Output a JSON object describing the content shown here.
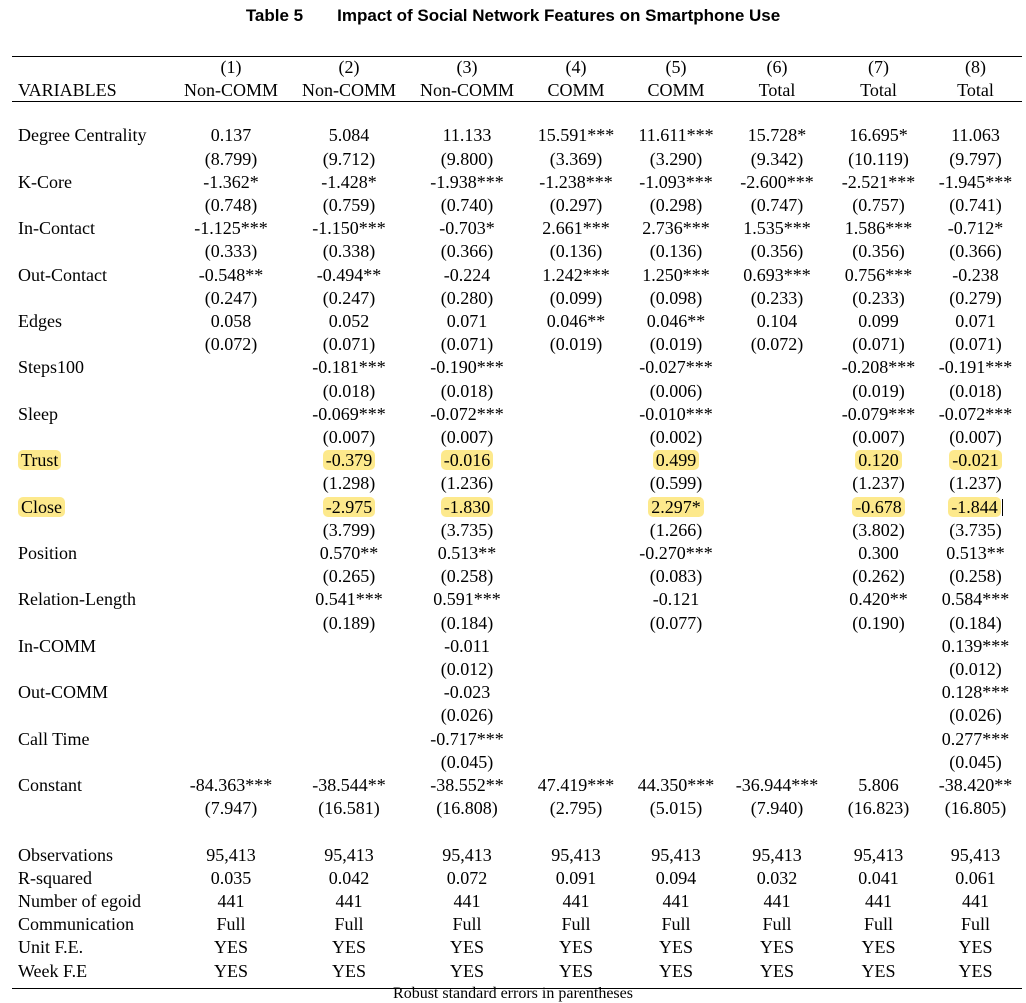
{
  "table": {
    "label": "Table 5",
    "title": "Impact of Social Network Features on Smartphone Use",
    "variables_header": "VARIABLES",
    "columns": [
      {
        "num": "(1)",
        "name": "Non-COMM"
      },
      {
        "num": "(2)",
        "name": "Non-COMM"
      },
      {
        "num": "(3)",
        "name": "Non-COMM"
      },
      {
        "num": "(4)",
        "name": "COMM"
      },
      {
        "num": "(5)",
        "name": "COMM"
      },
      {
        "num": "(6)",
        "name": "Total"
      },
      {
        "num": "(7)",
        "name": "Total"
      },
      {
        "num": "(8)",
        "name": "Total"
      }
    ],
    "rows": [
      {
        "var": "Degree Centrality",
        "coef": [
          "0.137",
          "5.084",
          "11.133",
          "15.591***",
          "11.611***",
          "15.728*",
          "16.695*",
          "11.063"
        ],
        "se": [
          "(8.799)",
          "(9.712)",
          "(9.800)",
          "(3.369)",
          "(3.290)",
          "(9.342)",
          "(10.119)",
          "(9.797)"
        ]
      },
      {
        "var": "K-Core",
        "coef": [
          "-1.362*",
          "-1.428*",
          "-1.938***",
          "-1.238***",
          "-1.093***",
          "-2.600***",
          "-2.521***",
          "-1.945***"
        ],
        "se": [
          "(0.748)",
          "(0.759)",
          "(0.740)",
          "(0.297)",
          "(0.298)",
          "(0.747)",
          "(0.757)",
          "(0.741)"
        ]
      },
      {
        "var": "In-Contact",
        "coef": [
          "-1.125***",
          "-1.150***",
          "-0.703*",
          "2.661***",
          "2.736***",
          "1.535***",
          "1.586***",
          "-0.712*"
        ],
        "se": [
          "(0.333)",
          "(0.338)",
          "(0.366)",
          "(0.136)",
          "(0.136)",
          "(0.356)",
          "(0.356)",
          "(0.366)"
        ]
      },
      {
        "var": "Out-Contact",
        "coef": [
          "-0.548**",
          "-0.494**",
          "-0.224",
          "1.242***",
          "1.250***",
          "0.693***",
          "0.756***",
          "-0.238"
        ],
        "se": [
          "(0.247)",
          "(0.247)",
          "(0.280)",
          "(0.099)",
          "(0.098)",
          "(0.233)",
          "(0.233)",
          "(0.279)"
        ]
      },
      {
        "var": "Edges",
        "coef": [
          "0.058",
          "0.052",
          "0.071",
          "0.046**",
          "0.046**",
          "0.104",
          "0.099",
          "0.071"
        ],
        "se": [
          "(0.072)",
          "(0.071)",
          "(0.071)",
          "(0.019)",
          "(0.019)",
          "(0.072)",
          "(0.071)",
          "(0.071)"
        ]
      },
      {
        "var": "Steps100",
        "coef": [
          "",
          "-0.181***",
          "-0.190***",
          "",
          "-0.027***",
          "",
          "-0.208***",
          "-0.191***"
        ],
        "se": [
          "",
          "(0.018)",
          "(0.018)",
          "",
          "(0.006)",
          "",
          "(0.019)",
          "(0.018)"
        ]
      },
      {
        "var": "Sleep",
        "coef": [
          "",
          "-0.069***",
          "-0.072***",
          "",
          "-0.010***",
          "",
          "-0.079***",
          "-0.072***"
        ],
        "se": [
          "",
          "(0.007)",
          "(0.007)",
          "",
          "(0.002)",
          "",
          "(0.007)",
          "(0.007)"
        ]
      },
      {
        "var": "Trust",
        "highlight": true,
        "coef": [
          "",
          "-0.379",
          "-0.016",
          "",
          "0.499",
          "",
          "0.120",
          "-0.021"
        ],
        "se": [
          "",
          "(1.298)",
          "(1.236)",
          "",
          "(0.599)",
          "",
          "(1.237)",
          "(1.237)"
        ]
      },
      {
        "var": "Close",
        "highlight": true,
        "coef": [
          "",
          "-2.975",
          "-1.830",
          "",
          "2.297*",
          "",
          "-0.678",
          "-1.844"
        ],
        "se": [
          "",
          "(3.799)",
          "(3.735)",
          "",
          "(1.266)",
          "",
          "(3.802)",
          "(3.735)"
        ]
      },
      {
        "var": "Position",
        "coef": [
          "",
          "0.570**",
          "0.513**",
          "",
          "-0.270***",
          "",
          "0.300",
          "0.513**"
        ],
        "se": [
          "",
          "(0.265)",
          "(0.258)",
          "",
          "(0.083)",
          "",
          "(0.262)",
          "(0.258)"
        ]
      },
      {
        "var": "Relation-Length",
        "coef": [
          "",
          "0.541***",
          "0.591***",
          "",
          "-0.121",
          "",
          "0.420**",
          "0.584***"
        ],
        "se": [
          "",
          "(0.189)",
          "(0.184)",
          "",
          "(0.077)",
          "",
          "(0.190)",
          "(0.184)"
        ]
      },
      {
        "var": "In-COMM",
        "coef": [
          "",
          "",
          "-0.011",
          "",
          "",
          "",
          "",
          "0.139***"
        ],
        "se": [
          "",
          "",
          "(0.012)",
          "",
          "",
          "",
          "",
          "(0.012)"
        ]
      },
      {
        "var": "Out-COMM",
        "coef": [
          "",
          "",
          "-0.023",
          "",
          "",
          "",
          "",
          "0.128***"
        ],
        "se": [
          "",
          "",
          "(0.026)",
          "",
          "",
          "",
          "",
          "(0.026)"
        ]
      },
      {
        "var": "Call Time",
        "coef": [
          "",
          "",
          "-0.717***",
          "",
          "",
          "",
          "",
          "0.277***"
        ],
        "se": [
          "",
          "",
          "(0.045)",
          "",
          "",
          "",
          "",
          "(0.045)"
        ]
      },
      {
        "var": "Constant",
        "coef": [
          "-84.363***",
          "-38.544**",
          "-38.552**",
          "47.419***",
          "44.350***",
          "-36.944***",
          "5.806",
          "-38.420**"
        ],
        "se": [
          "(7.947)",
          "(16.581)",
          "(16.808)",
          "(2.795)",
          "(5.015)",
          "(7.940)",
          "(16.823)",
          "(16.805)"
        ]
      }
    ],
    "stats": [
      {
        "label": "Observations",
        "values": [
          "95,413",
          "95,413",
          "95,413",
          "95,413",
          "95,413",
          "95,413",
          "95,413",
          "95,413"
        ]
      },
      {
        "label": "R-squared",
        "values": [
          "0.035",
          "0.042",
          "0.072",
          "0.091",
          "0.094",
          "0.032",
          "0.041",
          "0.061"
        ]
      },
      {
        "label": "Number of egoid",
        "values": [
          "441",
          "441",
          "441",
          "441",
          "441",
          "441",
          "441",
          "441"
        ]
      },
      {
        "label": "Communication",
        "values": [
          "Full",
          "Full",
          "Full",
          "Full",
          "Full",
          "Full",
          "Full",
          "Full"
        ]
      },
      {
        "label": "Unit F.E.",
        "values": [
          "YES",
          "YES",
          "YES",
          "YES",
          "YES",
          "YES",
          "YES",
          "YES"
        ]
      },
      {
        "label": "Week F.E",
        "values": [
          "YES",
          "YES",
          "YES",
          "YES",
          "YES",
          "YES",
          "YES",
          "YES"
        ]
      }
    ],
    "footnote": "Robust standard errors in parentheses"
  },
  "colors": {
    "highlight": "#fde98c",
    "text": "#000000"
  }
}
